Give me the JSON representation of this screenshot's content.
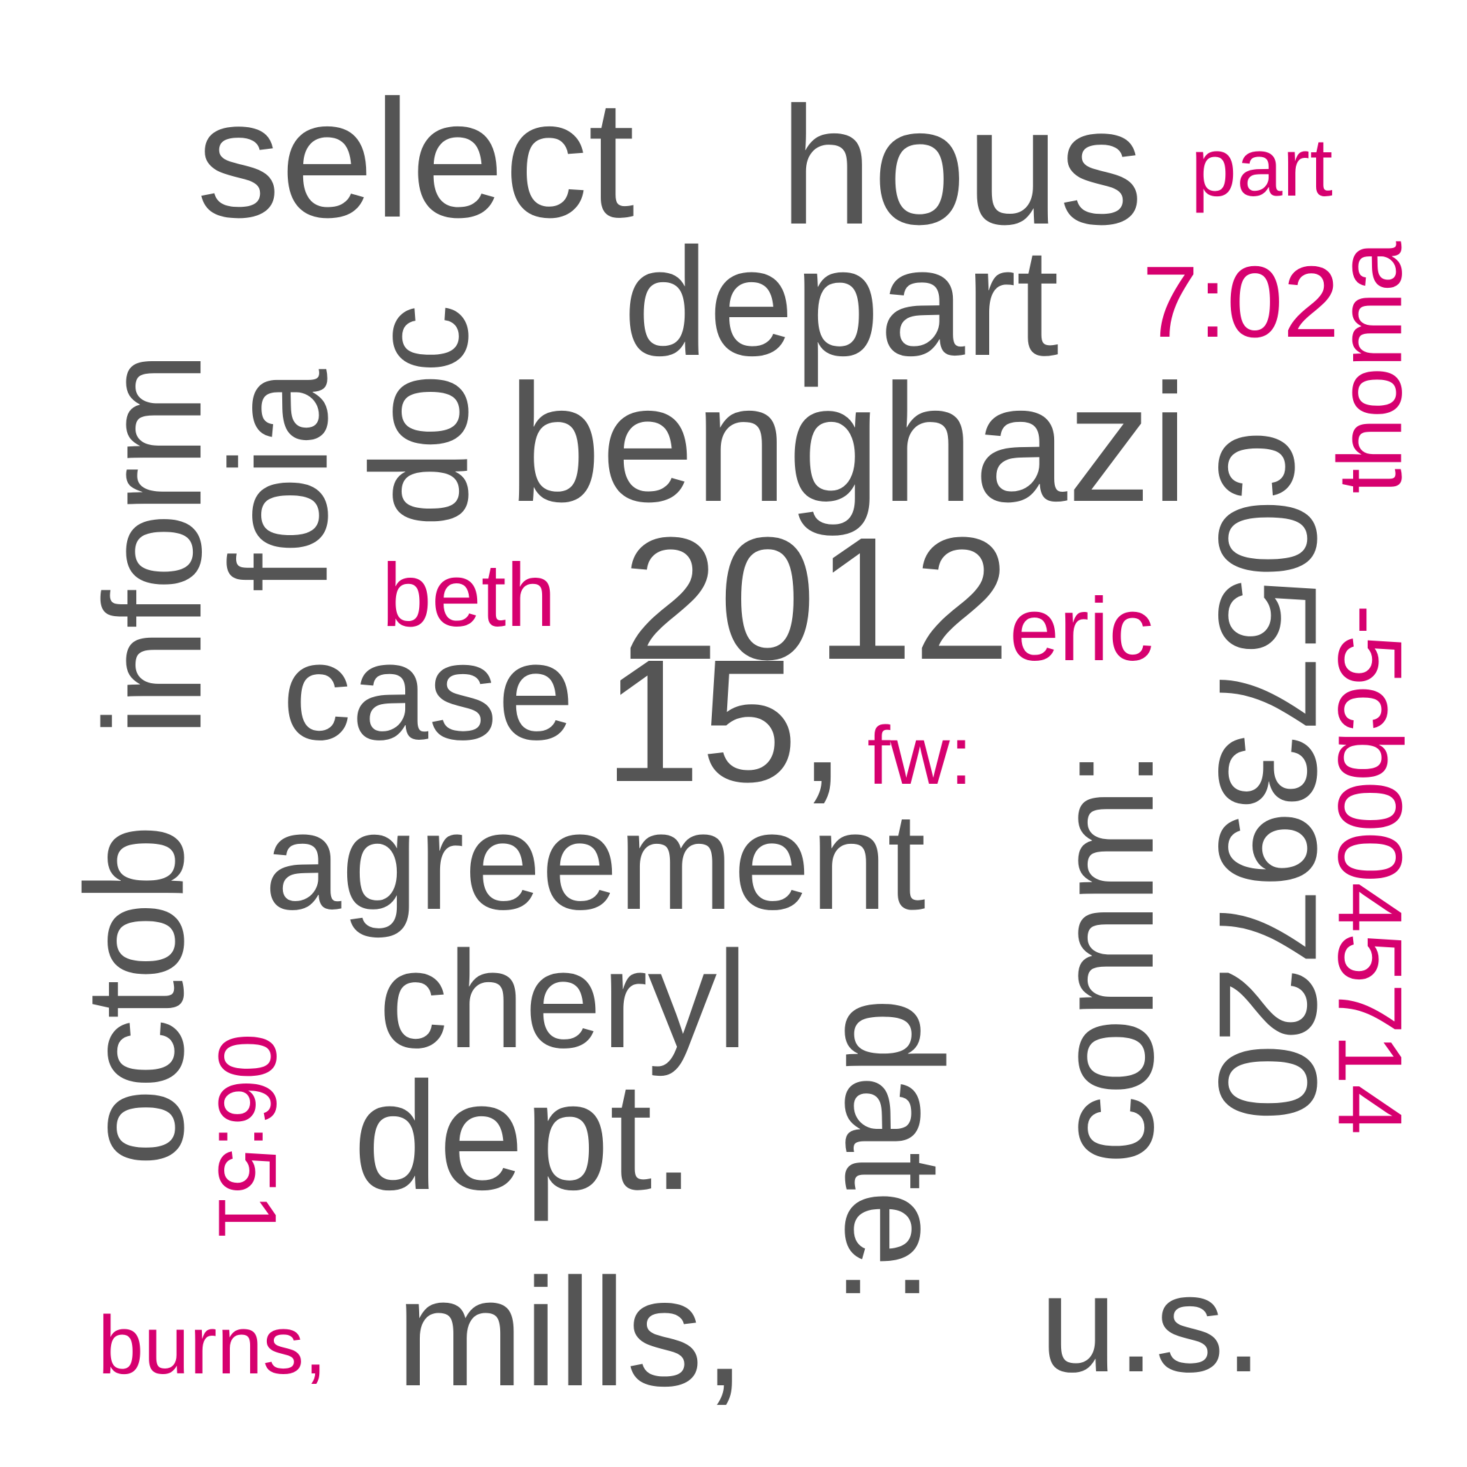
{
  "colors": {
    "primary": "#555555",
    "accent": "#d6006f",
    "background": "#ffffff"
  },
  "words": [
    {
      "text": "select",
      "weight": "large",
      "orientation": "horizontal",
      "color": "primary"
    },
    {
      "text": "hous",
      "weight": "large",
      "orientation": "horizontal",
      "color": "primary"
    },
    {
      "text": "part",
      "weight": "small",
      "orientation": "horizontal",
      "color": "accent"
    },
    {
      "text": "depart",
      "weight": "large",
      "orientation": "horizontal",
      "color": "primary"
    },
    {
      "text": "7:02",
      "weight": "small",
      "orientation": "horizontal",
      "color": "accent"
    },
    {
      "text": "thoma",
      "weight": "small",
      "orientation": "vertical",
      "color": "accent"
    },
    {
      "text": "doc",
      "weight": "large",
      "orientation": "vertical",
      "color": "primary"
    },
    {
      "text": "foia",
      "weight": "large",
      "orientation": "vertical",
      "color": "primary"
    },
    {
      "text": "inform",
      "weight": "large",
      "orientation": "vertical",
      "color": "primary"
    },
    {
      "text": "benghazi",
      "weight": "large",
      "orientation": "horizontal",
      "color": "primary"
    },
    {
      "text": "beth",
      "weight": "small",
      "orientation": "horizontal",
      "color": "accent"
    },
    {
      "text": "2012",
      "weight": "large",
      "orientation": "horizontal",
      "color": "primary"
    },
    {
      "text": "eric",
      "weight": "small",
      "orientation": "horizontal",
      "color": "accent"
    },
    {
      "text": "c05739720",
      "weight": "large",
      "orientation": "vertical",
      "color": "primary"
    },
    {
      "text": "case",
      "weight": "large",
      "orientation": "horizontal",
      "color": "primary"
    },
    {
      "text": "15,",
      "weight": "large",
      "orientation": "horizontal",
      "color": "primary"
    },
    {
      "text": "fw:",
      "weight": "small",
      "orientation": "horizontal",
      "color": "accent"
    },
    {
      "text": "comm:",
      "weight": "large",
      "orientation": "vertical",
      "color": "primary"
    },
    {
      "text": "-5cb0045714",
      "weight": "small",
      "orientation": "vertical",
      "color": "accent"
    },
    {
      "text": "octob",
      "weight": "large",
      "orientation": "vertical",
      "color": "primary"
    },
    {
      "text": "agreement",
      "weight": "large",
      "orientation": "horizontal",
      "color": "primary"
    },
    {
      "text": "cheryl",
      "weight": "large",
      "orientation": "horizontal",
      "color": "primary"
    },
    {
      "text": "06:51",
      "weight": "small",
      "orientation": "vertical",
      "color": "accent"
    },
    {
      "text": "date:",
      "weight": "large",
      "orientation": "vertical",
      "color": "primary"
    },
    {
      "text": "dept.",
      "weight": "large",
      "orientation": "horizontal",
      "color": "primary"
    },
    {
      "text": "burns,",
      "weight": "small",
      "orientation": "horizontal",
      "color": "accent"
    },
    {
      "text": "mills,",
      "weight": "large",
      "orientation": "horizontal",
      "color": "primary"
    },
    {
      "text": "u.s.",
      "weight": "large",
      "orientation": "horizontal",
      "color": "primary"
    }
  ]
}
